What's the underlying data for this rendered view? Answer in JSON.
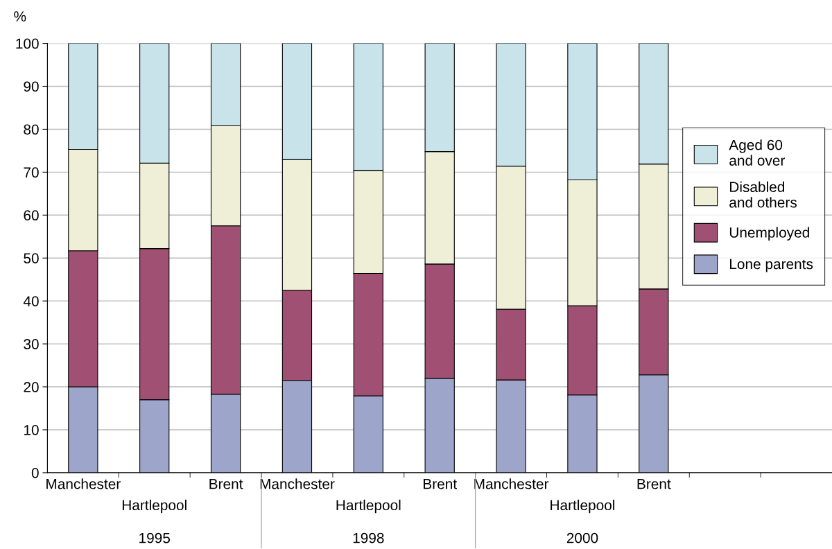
{
  "chart_data": {
    "type": "bar",
    "stacked": true,
    "ylabel": "%",
    "categories": [
      "Manchester",
      "Hartlepool",
      "Brent",
      "Manchester",
      "Hartlepool",
      "Brent",
      "Manchester",
      "Hartlepool",
      "Brent",
      null,
      null
    ],
    "annotations": [
      "1995",
      "1998",
      "2000"
    ],
    "series": [
      {
        "name": "Lone parents",
        "color": "#9ea5cb",
        "values": [
          20.0,
          17.0,
          18.3,
          21.5,
          17.9,
          22.0,
          21.6,
          18.1,
          22.8,
          null,
          null
        ]
      },
      {
        "name": "Unemployed",
        "color": "#a05072",
        "values": [
          31.7,
          35.2,
          39.2,
          21.0,
          28.5,
          26.6,
          16.5,
          20.8,
          20.0,
          null,
          null
        ]
      },
      {
        "name": "Disabled\nand others",
        "color": "#efeed6",
        "values": [
          23.6,
          19.9,
          23.3,
          30.4,
          24.0,
          26.2,
          33.3,
          29.3,
          29.1,
          null,
          null
        ]
      },
      {
        "name": "Aged 60\nand over",
        "color": "#c9e3ea",
        "values": [
          24.7,
          27.9,
          19.2,
          27.1,
          29.6,
          25.2,
          28.6,
          31.8,
          28.1,
          null,
          null
        ]
      }
    ],
    "ylim": [
      0,
      100
    ],
    "yticks": [
      0,
      10,
      20,
      30,
      40,
      50,
      60,
      70,
      80,
      90,
      100
    ],
    "grid": "y",
    "legend": "right"
  }
}
